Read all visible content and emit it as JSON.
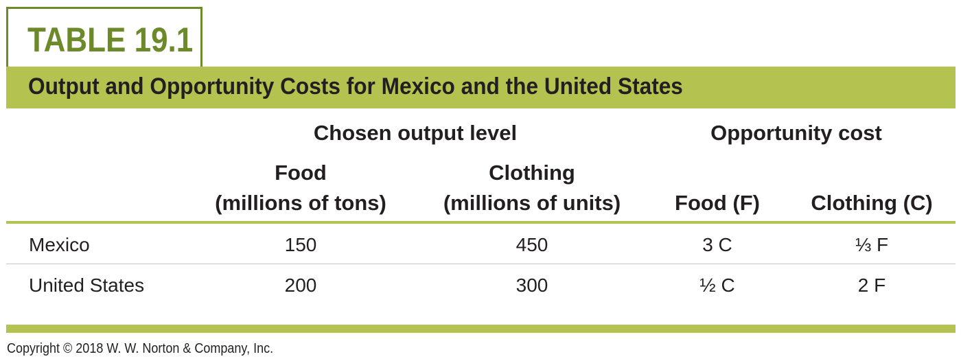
{
  "table_label": "TABLE 19.1",
  "title": "Output and Opportunity Costs for Mexico and the United States",
  "header": {
    "group_output": "Chosen output level",
    "group_cost": "Opportunity cost",
    "food_label": "Food",
    "food_unit": "(millions of tons)",
    "clothing_label": "Clothing",
    "clothing_unit": "(millions of units)",
    "cost_food": "Food (F)",
    "cost_clothing": "Clothing (C)"
  },
  "rows": [
    {
      "country": "Mexico",
      "food": "150",
      "clothing": "450",
      "cost_food": "3 C",
      "cost_clothing": "⅓ F"
    },
    {
      "country": "United States",
      "food": "200",
      "clothing": "300",
      "cost_food": "½ C",
      "cost_clothing": "2 F"
    }
  ],
  "copyright": "Copyright © 2018 W. W. Norton & Company, Inc.",
  "colors": {
    "accent_green": "#b4c24f",
    "label_green": "#6d8a2b",
    "text": "#231f20"
  }
}
